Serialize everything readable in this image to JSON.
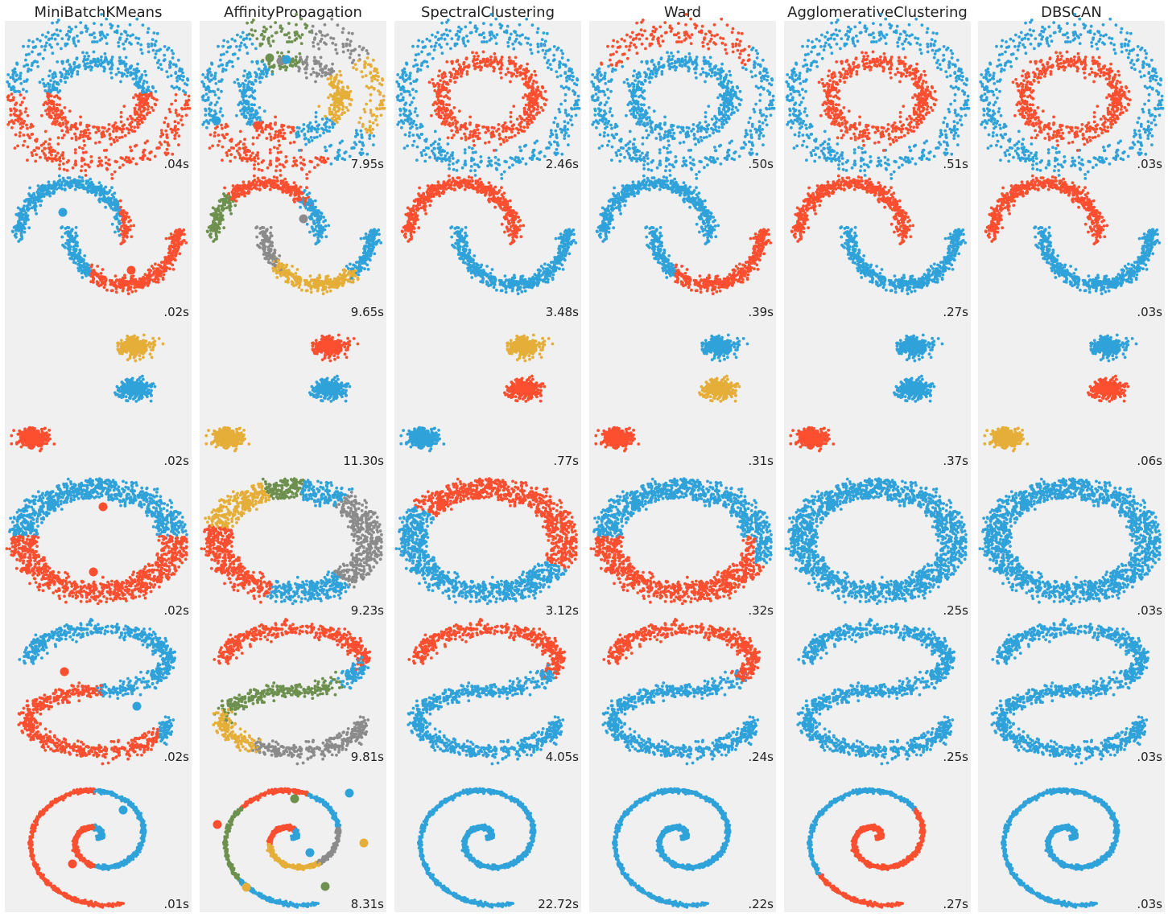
{
  "chart_data": {
    "type": "scatter",
    "colors": {
      "background": "#f0f0f0",
      "blue": "#30a2da",
      "red": "#fc4f30",
      "yellow": "#e5ae38",
      "green": "#6d904f",
      "gray": "#8b8b8b"
    },
    "algorithms": [
      "MiniBatchKMeans",
      "AffinityPropagation",
      "SpectralClustering",
      "Ward",
      "AgglomerativeClustering",
      "DBSCAN"
    ],
    "datasets": [
      "noisy_circles",
      "noisy_moons",
      "blobs",
      "ring",
      "s_curve",
      "spiral"
    ],
    "timings": [
      [
        ".04s",
        "7.95s",
        "2.46s",
        ".50s",
        ".51s",
        ".03s"
      ],
      [
        ".02s",
        "9.65s",
        "3.48s",
        ".39s",
        ".27s",
        ".03s"
      ],
      [
        ".02s",
        "11.30s",
        ".77s",
        ".31s",
        ".37s",
        ".06s"
      ],
      [
        ".02s",
        "9.23s",
        "3.12s",
        ".32s",
        ".25s",
        ".03s"
      ],
      [
        ".02s",
        "9.81s",
        "4.05s",
        ".24s",
        ".25s",
        ".03s"
      ],
      [
        ".01s",
        "8.31s",
        "22.72s",
        ".22s",
        ".27s",
        ".03s"
      ]
    ],
    "row_labelling": [
      [
        "halfplane",
        "ap_circles",
        "circles",
        "ward_circles",
        "circles",
        "circles"
      ],
      [
        "moons_km",
        "ap_moons",
        "moons",
        "moons_ward",
        "moons",
        "moons"
      ],
      [
        "blobs_km",
        "blobs_ap",
        "blobs_sc",
        "blobs_ward",
        "blobs_agg",
        "blobs_db"
      ],
      [
        "halfplane",
        "ap_ring",
        "ring_sc",
        "ring_ward",
        "one",
        "one"
      ],
      [
        "s_km",
        "s_ap",
        "s_sc",
        "s_ward",
        "one",
        "one"
      ],
      [
        "spiral_km",
        "spiral_ap",
        "one",
        "spiral_ward",
        "spiral_agg",
        "one"
      ]
    ],
    "centers": [
      [
        [],
        [
          [
            335,
            72
          ],
          [
            349,
            76
          ],
          [
            356,
            74
          ],
          [
            430,
            118
          ],
          [
            269,
            150
          ],
          [
            320,
            156
          ]
        ],
        [],
        [],
        [],
        []
      ],
      [
        [
          [
            78,
            264
          ],
          [
            163,
            336
          ]
        ],
        [
          [
            377,
            272
          ]
        ],
        [],
        [],
        [],
        []
      ],
      [
        [],
        [],
        [],
        [],
        [],
        []
      ],
      [
        [
          [
            128,
            630
          ],
          [
            116,
            711
          ]
        ],
        [],
        [],
        [],
        [],
        []
      ],
      [
        [
          [
            80,
            835
          ],
          [
            170,
            878
          ]
        ],
        [],
        [],
        [],
        [],
        []
      ],
      [
        [
          [
            153,
            1007
          ],
          [
            90,
            1074
          ]
        ],
        [
          [
            366,
            993
          ],
          [
            434,
            986
          ],
          [
            270,
            1025
          ],
          [
            385,
            1060
          ],
          [
            452,
            1048
          ],
          [
            306,
            1103
          ],
          [
            404,
            1102
          ]
        ],
        [],
        [],
        [],
        []
      ]
    ],
    "grid": false,
    "axes": "hidden"
  }
}
